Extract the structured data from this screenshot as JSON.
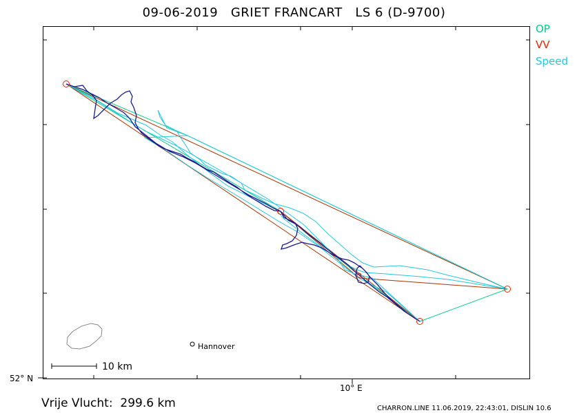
{
  "header": {
    "title": "09-06-2019   GRIET FRANCART   LS 6 (D-9700)"
  },
  "legend": {
    "op": {
      "label": "OP",
      "color": "#00cc88"
    },
    "vv": {
      "label": "VV",
      "color": "#ee2200"
    },
    "speed": {
      "label": "Speed",
      "color": "#22c8e0"
    }
  },
  "axes": {
    "lat_label": "52° N",
    "lon_label": "10° E"
  },
  "map": {
    "track_color": "#1a1a8c",
    "city": {
      "name": "Hannover",
      "icon": "city-dot-icon"
    },
    "scale": {
      "label": "10  km"
    }
  },
  "summary": {
    "distance": "Vrije Vlucht:  299.6 km"
  },
  "footer": {
    "text": "CHARRON.LINE 11.06.2019, 22:43:01, DISLIN 10.6"
  }
}
